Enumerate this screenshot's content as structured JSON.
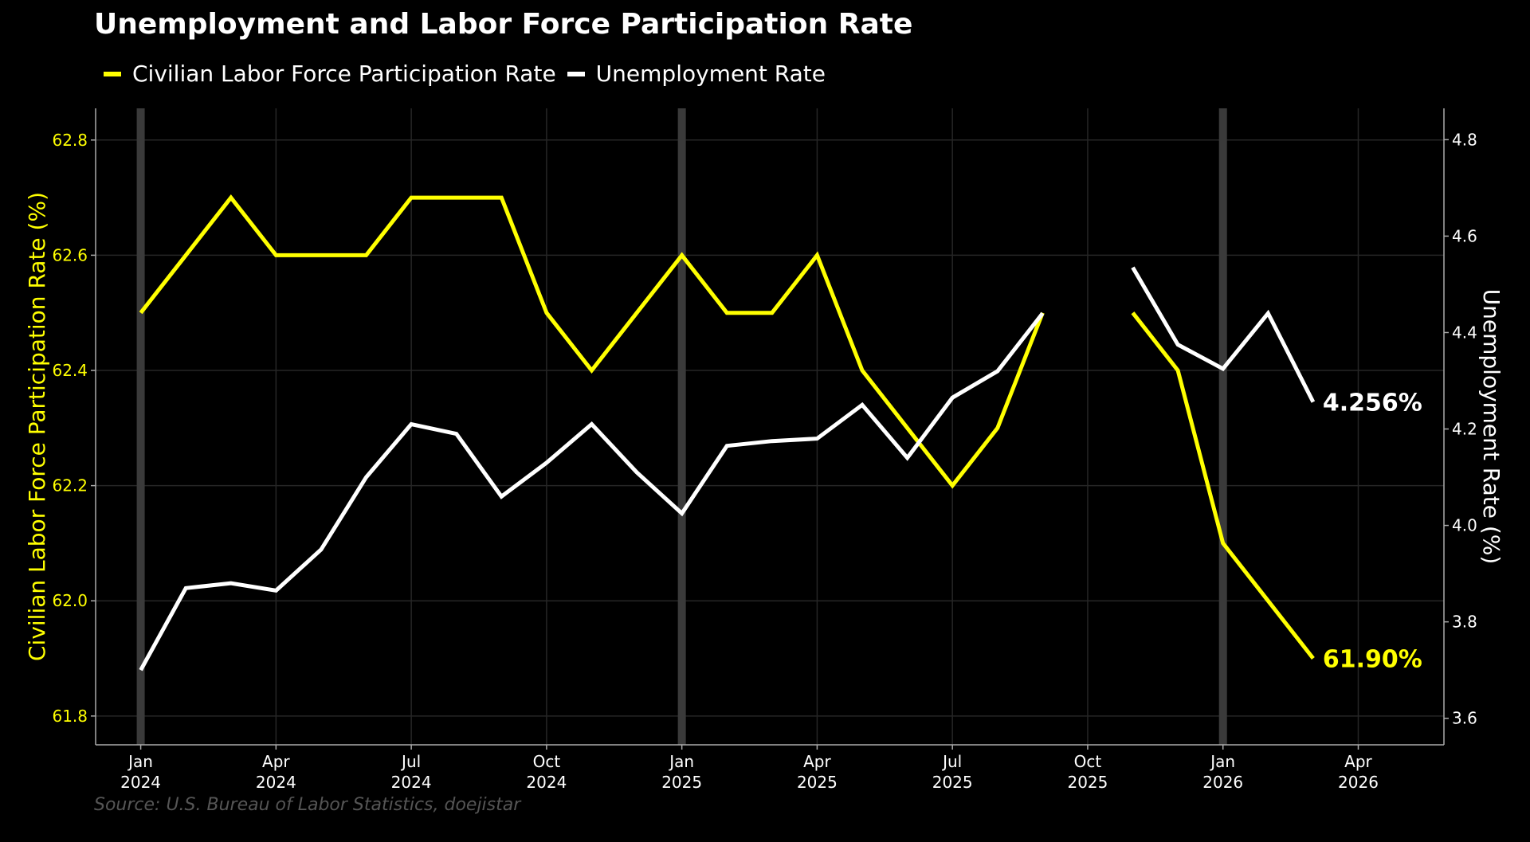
{
  "chart_data": {
    "type": "line",
    "title": "Unemployment and Labor Force Participation Rate",
    "source": "Source: U.S. Bureau of Labor Statistics, doejistar",
    "colors": {
      "lfpr": "#ffff00",
      "unrate": "#ffffff",
      "background": "#000000",
      "grid": "#262626",
      "axis": "#aaaaaa",
      "shade": "#3a3a3a",
      "source": "#555555"
    },
    "left_axis": {
      "label": "Civilian Labor Force Participation Rate (%)",
      "range": [
        61.75,
        62.855
      ],
      "ticks": [
        "61.8",
        "62.0",
        "62.2",
        "62.4",
        "62.6",
        "62.8"
      ],
      "tick_values": [
        61.8,
        62.0,
        62.2,
        62.4,
        62.6,
        62.8
      ]
    },
    "right_axis": {
      "label": "Unemployment Rate (%)",
      "range": [
        3.545,
        4.865
      ],
      "ticks": [
        "3.6",
        "3.8",
        "4.0",
        "4.2",
        "4.4",
        "4.6",
        "4.8"
      ],
      "tick_values": [
        3.6,
        3.8,
        4.0,
        4.2,
        4.4,
        4.6,
        4.8
      ]
    },
    "x_range_months": [
      -1.0,
      28.9
    ],
    "x_ticks": [
      {
        "month": 0,
        "line1": "Jan",
        "line2": "2024"
      },
      {
        "month": 3,
        "line1": "Apr",
        "line2": "2024"
      },
      {
        "month": 6,
        "line1": "Jul",
        "line2": "2024"
      },
      {
        "month": 9,
        "line1": "Oct",
        "line2": "2024"
      },
      {
        "month": 12,
        "line1": "Jan",
        "line2": "2025"
      },
      {
        "month": 15,
        "line1": "Apr",
        "line2": "2025"
      },
      {
        "month": 18,
        "line1": "Jul",
        "line2": "2025"
      },
      {
        "month": 21,
        "line1": "Oct",
        "line2": "2025"
      },
      {
        "month": 24,
        "line1": "Jan",
        "line2": "2026"
      },
      {
        "month": 27,
        "line1": "Apr",
        "line2": "2026"
      }
    ],
    "january_markers": [
      0,
      12,
      24
    ],
    "legend": [
      "Civilian Labor Force Participation Rate",
      "Unemployment Rate"
    ],
    "series": [
      {
        "name": "Civilian Labor Force Participation Rate",
        "axis": "left",
        "months": [
          0,
          1,
          2,
          3,
          4,
          5,
          6,
          7,
          8,
          9,
          10,
          11,
          12,
          13,
          14,
          15,
          16,
          17,
          18,
          19,
          20,
          22,
          23,
          24,
          25,
          26
        ],
        "values": [
          62.5,
          62.6,
          62.7,
          62.6,
          62.6,
          62.6,
          62.7,
          62.7,
          62.7,
          62.5,
          62.4,
          62.5,
          62.6,
          62.5,
          62.5,
          62.6,
          62.4,
          62.3,
          62.2,
          62.3,
          62.5,
          62.5,
          62.4,
          62.1,
          62.0,
          61.9
        ],
        "segments": [
          [
            0,
            20
          ],
          [
            22,
            26
          ]
        ],
        "end_label": "61.90%"
      },
      {
        "name": "Unemployment Rate",
        "axis": "right",
        "months": [
          0,
          1,
          2,
          3,
          4,
          5,
          6,
          7,
          8,
          9,
          10,
          11,
          12,
          13,
          14,
          15,
          16,
          17,
          18,
          19,
          20,
          22,
          23,
          24,
          25,
          26
        ],
        "values": [
          3.7,
          3.87,
          3.88,
          3.865,
          3.95,
          4.1,
          4.21,
          4.19,
          4.06,
          4.13,
          4.21,
          4.11,
          4.025,
          4.165,
          4.175,
          4.18,
          4.25,
          4.14,
          4.265,
          4.32,
          4.44,
          4.535,
          4.375,
          4.325,
          4.44,
          4.256
        ],
        "segments": [
          [
            0,
            20
          ],
          [
            22,
            26
          ]
        ],
        "end_label": "4.256%"
      }
    ]
  }
}
